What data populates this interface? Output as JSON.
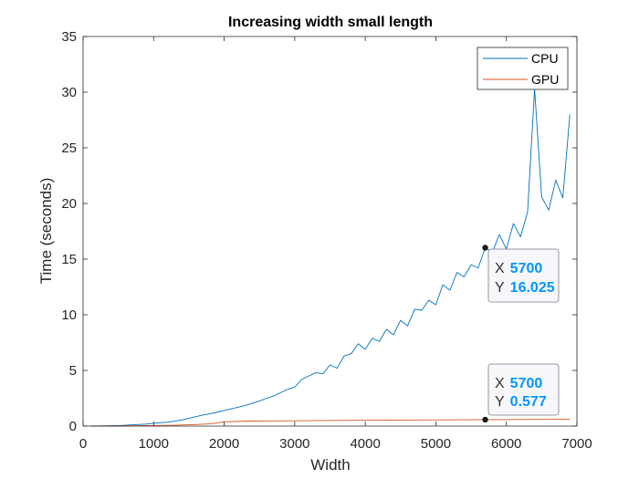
{
  "chart_data": {
    "type": "line",
    "title": "Increasing width small length",
    "xlabel": "Width",
    "ylabel": "Time (seconds)",
    "xlim": [
      0,
      7000
    ],
    "ylim": [
      0,
      35
    ],
    "xticks": [
      "0",
      "1000",
      "2000",
      "3000",
      "4000",
      "5000",
      "6000",
      "7000"
    ],
    "yticks": [
      "0",
      "5",
      "10",
      "15",
      "20",
      "25",
      "30",
      "35"
    ],
    "grid": false,
    "legend_position": "top-right",
    "series": [
      {
        "name": "CPU",
        "color": "#0072BD",
        "x": [
          100,
          200,
          300,
          400,
          500,
          600,
          700,
          800,
          900,
          1000,
          1100,
          1200,
          1300,
          1400,
          1500,
          1600,
          1700,
          1800,
          1900,
          2000,
          2100,
          2200,
          2300,
          2400,
          2500,
          2600,
          2700,
          2800,
          2900,
          3000,
          3100,
          3200,
          3300,
          3400,
          3500,
          3600,
          3700,
          3800,
          3900,
          4000,
          4100,
          4200,
          4300,
          4400,
          4500,
          4600,
          4700,
          4800,
          4900,
          5000,
          5100,
          5200,
          5300,
          5400,
          5500,
          5600,
          5700,
          5800,
          5900,
          6000,
          6100,
          6200,
          6300,
          6400,
          6500,
          6600,
          6700,
          6800,
          6900
        ],
        "y": [
          0.01,
          0.01,
          0.02,
          0.03,
          0.05,
          0.08,
          0.12,
          0.15,
          0.18,
          0.25,
          0.3,
          0.35,
          0.45,
          0.55,
          0.7,
          0.85,
          1.0,
          1.1,
          1.25,
          1.4,
          1.55,
          1.7,
          1.85,
          2.05,
          2.25,
          2.5,
          2.7,
          3.0,
          3.3,
          3.5,
          4.2,
          4.5,
          4.8,
          4.7,
          5.5,
          5.2,
          6.3,
          6.5,
          7.4,
          6.9,
          7.9,
          7.6,
          8.7,
          8.2,
          9.5,
          9.0,
          10.5,
          10.4,
          11.3,
          10.9,
          12.7,
          12.2,
          13.8,
          13.4,
          14.5,
          14.2,
          16.025,
          15.6,
          17.2,
          15.9,
          18.2,
          17.0,
          19.2,
          30.3,
          20.6,
          19.4,
          22.1,
          20.5,
          28.0
        ]
      },
      {
        "name": "GPU",
        "color": "#D95319",
        "x": [
          100,
          200,
          300,
          400,
          500,
          600,
          700,
          800,
          900,
          1000,
          1100,
          1200,
          1300,
          1400,
          1500,
          1600,
          1700,
          1800,
          1900,
          2000,
          2100,
          2200,
          2300,
          2400,
          2500,
          2600,
          2700,
          2800,
          2900,
          3000,
          3100,
          3200,
          3300,
          3400,
          3500,
          3600,
          3700,
          3800,
          3900,
          4000,
          4100,
          4200,
          4300,
          4400,
          4500,
          4600,
          4700,
          4800,
          4900,
          5000,
          5100,
          5200,
          5300,
          5400,
          5500,
          5600,
          5700,
          5800,
          5900,
          6000,
          6100,
          6200,
          6300,
          6400,
          6500,
          6600,
          6700,
          6800,
          6900
        ],
        "y": [
          0.0,
          0.0,
          0.0,
          0.01,
          0.01,
          0.02,
          0.02,
          0.03,
          0.04,
          0.05,
          0.06,
          0.07,
          0.08,
          0.1,
          0.12,
          0.14,
          0.17,
          0.2,
          0.28,
          0.38,
          0.4,
          0.42,
          0.44,
          0.45,
          0.46,
          0.46,
          0.47,
          0.47,
          0.48,
          0.48,
          0.49,
          0.49,
          0.5,
          0.5,
          0.51,
          0.51,
          0.51,
          0.52,
          0.52,
          0.52,
          0.53,
          0.53,
          0.53,
          0.54,
          0.54,
          0.54,
          0.55,
          0.55,
          0.55,
          0.56,
          0.56,
          0.56,
          0.57,
          0.57,
          0.57,
          0.577,
          0.577,
          0.58,
          0.58,
          0.58,
          0.59,
          0.59,
          0.59,
          0.6,
          0.6,
          0.6,
          0.61,
          0.61,
          0.61
        ]
      }
    ],
    "datatips": [
      {
        "x_label": "X",
        "x_value": "5700",
        "y_label": "Y",
        "y_value": "16.025",
        "x": 5700,
        "y": 16.025,
        "series": "CPU"
      },
      {
        "x_label": "X",
        "x_value": "5700",
        "y_label": "Y",
        "y_value": "0.577",
        "x": 5700,
        "y": 0.577,
        "series": "GPU"
      }
    ],
    "colors": {
      "datatip_value": "#0096FF",
      "datatip_marker": "#1a1a1a"
    }
  }
}
